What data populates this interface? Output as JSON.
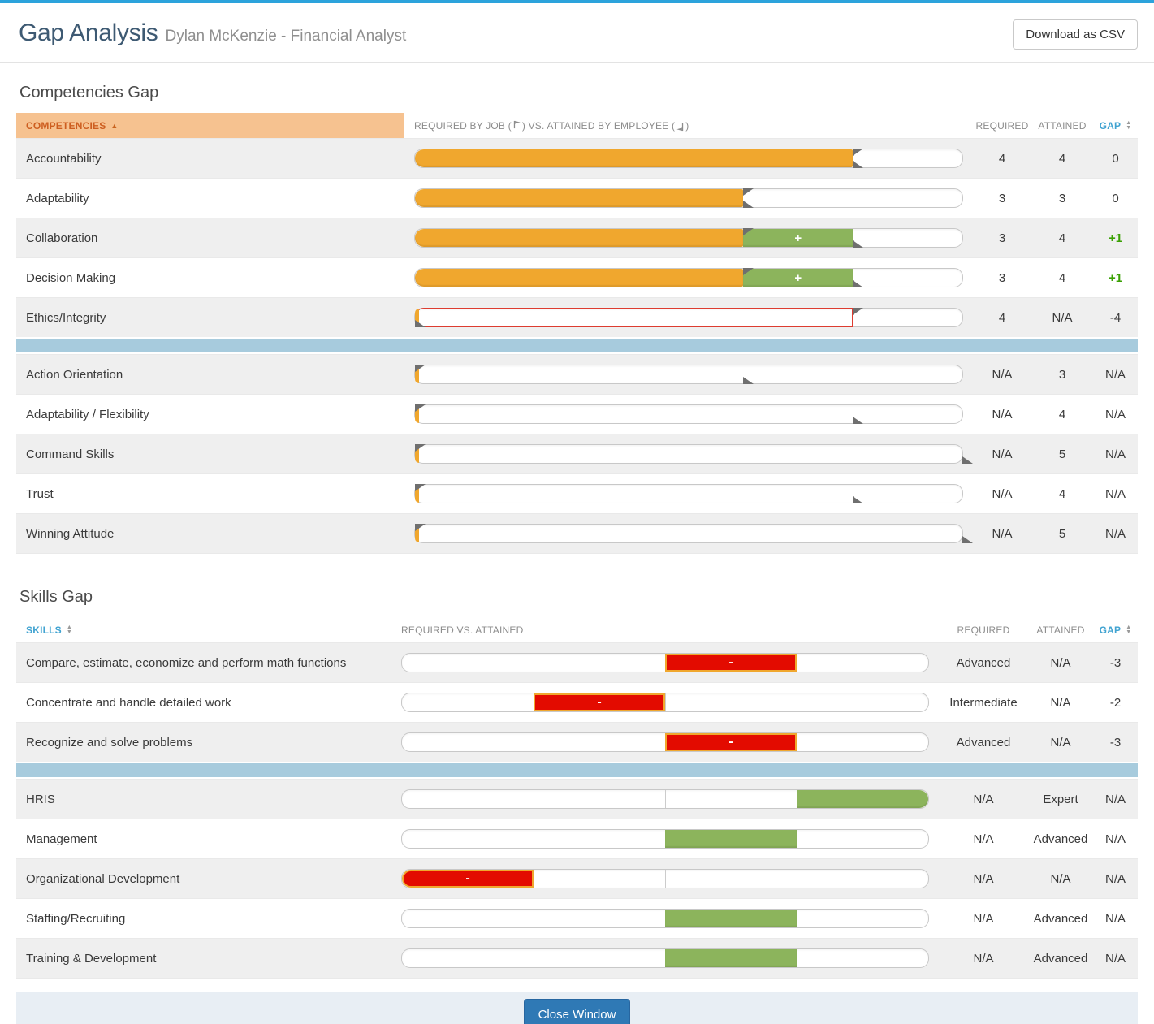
{
  "header": {
    "title": "Gap Analysis",
    "subtitle": "Dylan McKenzie - Financial Analyst",
    "download_button": "Download as CSV"
  },
  "icons": {
    "sort_asc": "▲",
    "sort_up": "▲",
    "sort_down": "▼",
    "required_flag": "flag-pointing-right",
    "attained_flag": "flag-pointing-left"
  },
  "labels": {
    "plus": "+",
    "minus": "-"
  },
  "colors": {
    "top_bar": "#2ca3dc",
    "required_bar_orange": "#f0a72e",
    "surplus_green": "#8cb45c",
    "deficit_red": "#e30b00",
    "deficit_outline_red": "#dd3c30",
    "separator_blue": "#a7cbdd",
    "header_peach": "#f6c290",
    "header_orange_text": "#cd5e20",
    "column_header_blue": "#41a3d1",
    "gap_positive_green": "#3aa004",
    "close_button_blue": "#2f79b5",
    "footer_band": "#e8eef4"
  },
  "competencies": {
    "heading": "Competencies Gap",
    "scale_max": 5,
    "columns": {
      "name": "COMPETENCIES",
      "bars_pre": "REQUIRED BY JOB (",
      "bars_mid": ") VS. ATTAINED BY EMPLOYEE (",
      "bars_post": ")",
      "required": "REQUIRED",
      "attained": "ATTAINED",
      "gap": "GAP"
    },
    "rows": [
      {
        "label": "Accountability",
        "required": 4,
        "attained": 4,
        "required_text": "4",
        "attained_text": "4",
        "gap_text": "0",
        "gap_positive": false
      },
      {
        "label": "Adaptability",
        "required": 3,
        "attained": 3,
        "required_text": "3",
        "attained_text": "3",
        "gap_text": "0",
        "gap_positive": false
      },
      {
        "label": "Collaboration",
        "required": 3,
        "attained": 4,
        "required_text": "3",
        "attained_text": "4",
        "gap_text": "+1",
        "gap_positive": true
      },
      {
        "label": "Decision Making",
        "required": 3,
        "attained": 4,
        "required_text": "3",
        "attained_text": "4",
        "gap_text": "+1",
        "gap_positive": true
      },
      {
        "label": "Ethics/Integrity",
        "required": 4,
        "attained": null,
        "required_text": "4",
        "attained_text": "N/A",
        "gap_text": "-4",
        "gap_positive": false
      },
      {
        "separator": true
      },
      {
        "label": "Action Orientation",
        "required": null,
        "attained": 3,
        "required_text": "N/A",
        "attained_text": "3",
        "gap_text": "N/A",
        "gap_positive": false
      },
      {
        "label": "Adaptability / Flexibility",
        "required": null,
        "attained": 4,
        "required_text": "N/A",
        "attained_text": "4",
        "gap_text": "N/A",
        "gap_positive": false
      },
      {
        "label": "Command Skills",
        "required": null,
        "attained": 5,
        "required_text": "N/A",
        "attained_text": "5",
        "gap_text": "N/A",
        "gap_positive": false
      },
      {
        "label": "Trust",
        "required": null,
        "attained": 4,
        "required_text": "N/A",
        "attained_text": "4",
        "gap_text": "N/A",
        "gap_positive": false
      },
      {
        "label": "Winning Attitude",
        "required": null,
        "attained": 5,
        "required_text": "N/A",
        "attained_text": "5",
        "gap_text": "N/A",
        "gap_positive": false
      }
    ]
  },
  "skills": {
    "heading": "Skills Gap",
    "segments": 4,
    "columns": {
      "name": "SKILLS",
      "bars": "REQUIRED VS. ATTAINED",
      "required": "REQUIRED",
      "attained": "ATTAINED",
      "gap": "GAP"
    },
    "rows": [
      {
        "label": "Compare, estimate, economize and perform math functions",
        "block_segment": 2,
        "block_color": "red",
        "required_text": "Advanced",
        "attained_text": "N/A",
        "gap_text": "-3"
      },
      {
        "label": "Concentrate and handle detailed work",
        "block_segment": 1,
        "block_color": "red",
        "required_text": "Intermediate",
        "attained_text": "N/A",
        "gap_text": "-2"
      },
      {
        "label": "Recognize and solve problems",
        "block_segment": 2,
        "block_color": "red",
        "required_text": "Advanced",
        "attained_text": "N/A",
        "gap_text": "-3"
      },
      {
        "separator": true
      },
      {
        "label": "HRIS",
        "block_segment": 3,
        "block_color": "green",
        "required_text": "N/A",
        "attained_text": "Expert",
        "gap_text": "N/A"
      },
      {
        "label": "Management",
        "block_segment": 2,
        "block_color": "green",
        "required_text": "N/A",
        "attained_text": "Advanced",
        "gap_text": "N/A"
      },
      {
        "label": "Organizational Development",
        "block_segment": 0,
        "block_color": "red",
        "required_text": "N/A",
        "attained_text": "N/A",
        "gap_text": "N/A"
      },
      {
        "label": "Staffing/Recruiting",
        "block_segment": 2,
        "block_color": "green",
        "required_text": "N/A",
        "attained_text": "Advanced",
        "gap_text": "N/A"
      },
      {
        "label": "Training & Development",
        "block_segment": 2,
        "block_color": "green",
        "required_text": "N/A",
        "attained_text": "Advanced",
        "gap_text": "N/A"
      }
    ]
  },
  "footer": {
    "close_button": "Close Window"
  }
}
